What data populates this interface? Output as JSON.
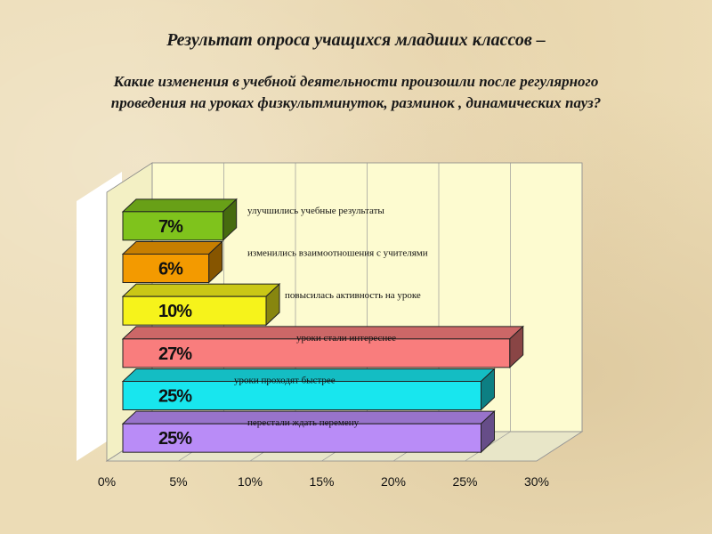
{
  "title": "Результат опроса учащихся младших классов –",
  "subtitle": "Какие изменения в учебной деятельности произошли после регулярного  проведения  на  уроках  физкультминуток, разминок , динамических пауз?",
  "chart_data": {
    "type": "bar",
    "orientation": "horizontal",
    "style": "3d",
    "categories": [
      "улучшились учебные результаты",
      "изменились взаимоотношения с учителями",
      "повысилась активность на уроке",
      "уроки стали интереснее",
      "уроки проходят быстрее",
      "перестали ждать перемену"
    ],
    "values": [
      7,
      6,
      10,
      27,
      25,
      25
    ],
    "value_labels": [
      "7%",
      "6%",
      "10%",
      "27%",
      "25%",
      "25%"
    ],
    "colors": [
      "#7fc31c",
      "#f39a00",
      "#f6f31b",
      "#f97d7d",
      "#18e6ee",
      "#b98cf7"
    ],
    "xlim": [
      0,
      30
    ],
    "xticks": [
      0,
      5,
      10,
      15,
      20,
      25,
      30
    ],
    "xtick_labels": [
      "0%",
      "5%",
      "10%",
      "15%",
      "20%",
      "25%",
      "30%"
    ],
    "grid": true,
    "plot_background": "#fdfbd0"
  }
}
